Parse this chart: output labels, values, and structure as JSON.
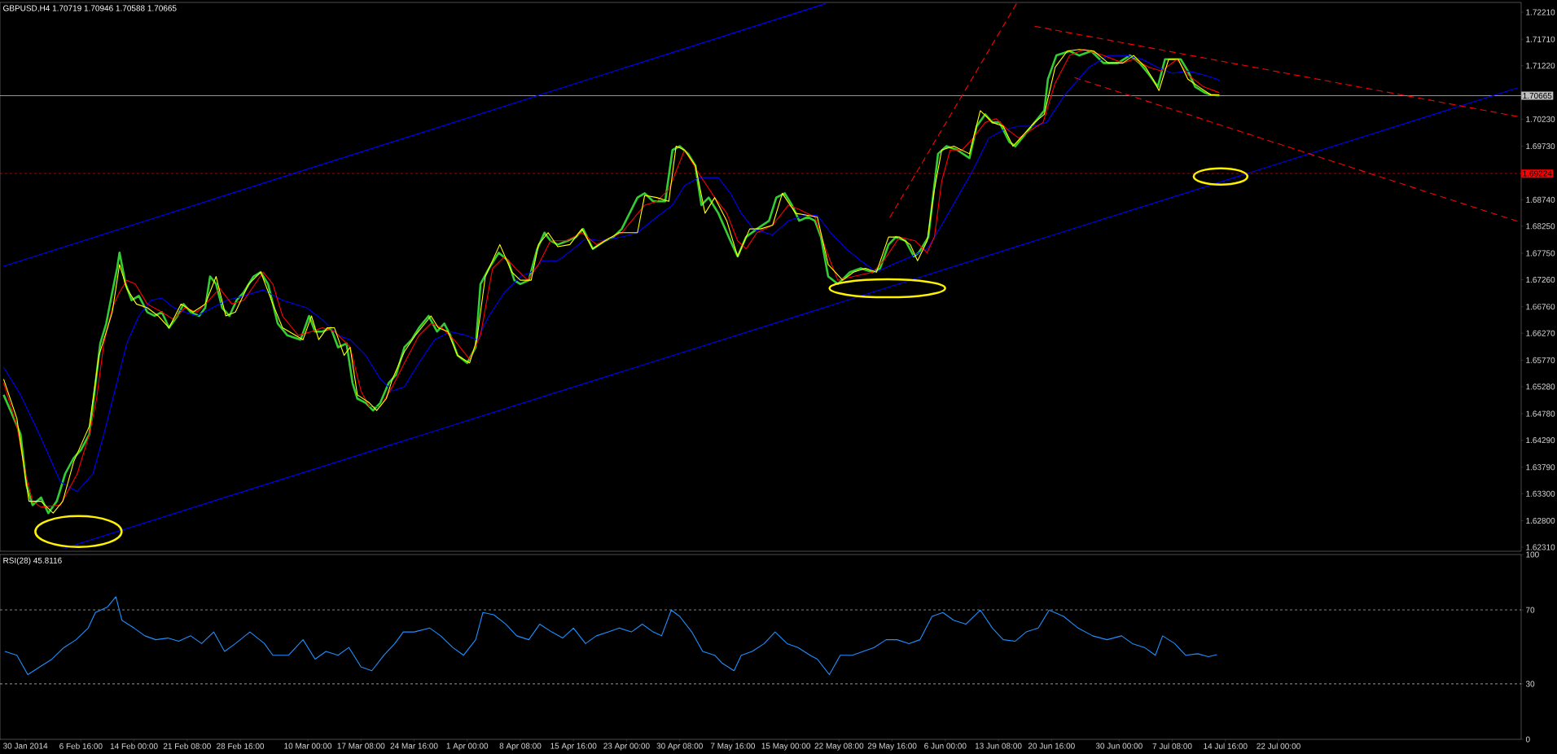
{
  "chart_data": [
    {
      "type": "line",
      "title": "GBPUSD,H4  1.70719 1.70946 1.70588 1.70665",
      "tick_labels": "y",
      "xlim": [
        "2014-01-26T12:00",
        "2014-08-24T12:00"
      ],
      "ylim": [
        1.62235,
        1.72391
      ],
      "yticks": [
        {
          "value": 1.6231,
          "label": "1.62310"
        },
        {
          "value": 1.628,
          "label": "1.62800"
        },
        {
          "value": 1.633,
          "label": "1.63300"
        },
        {
          "value": 1.6379,
          "label": "1.63790"
        },
        {
          "value": 1.6429,
          "label": "1.64290"
        },
        {
          "value": 1.6478,
          "label": "1.64780"
        },
        {
          "value": 1.6528,
          "label": "1.65280"
        },
        {
          "value": 1.6577,
          "label": "1.65770"
        },
        {
          "value": 1.6627,
          "label": "1.66270"
        },
        {
          "value": 1.6676,
          "label": "1.66760"
        },
        {
          "value": 1.6726,
          "label": "1.67260"
        },
        {
          "value": 1.6775,
          "label": "1.67750"
        },
        {
          "value": 1.6825,
          "label": "1.68250"
        },
        {
          "value": 1.6874,
          "label": "1.68740"
        },
        {
          "value": 1.6973,
          "label": "1.69730"
        },
        {
          "value": 1.7023,
          "label": "1.70230"
        },
        {
          "value": 1.7122,
          "label": "1.71220"
        },
        {
          "value": 1.7171,
          "label": "1.71710"
        },
        {
          "value": 1.7221,
          "label": "1.72210"
        }
      ],
      "ref_lines": [
        {
          "axis": "y",
          "value": 1.70665,
          "label": "1.70665",
          "color": "#c0c0c0",
          "line_style": "solid"
        },
        {
          "axis": "y",
          "value": 1.69224,
          "label": "1.69224",
          "color": "#ff0000",
          "line_style": "dotted"
        }
      ],
      "series": [
        {
          "color": "#0000ff",
          "line_style": "solid",
          "x": [
            "2014-01-27T00:00",
            "2014-05-20T12:00"
          ],
          "values": [
            1.6751,
            1.7237
          ]
        },
        {
          "color": "#0000ff",
          "line_style": "solid",
          "x": [
            "2014-02-04T04:00",
            "2014-08-24T00:00"
          ],
          "values": [
            1.6228,
            1.7081
          ]
        },
        {
          "color": "#ff0000",
          "line_style": "dashed",
          "x": [
            "2014-05-29T08:00",
            "2014-06-15T20:00"
          ],
          "values": [
            1.6841,
            1.7237
          ]
        },
        {
          "color": "#ff0000",
          "line_style": "dashed",
          "x": [
            "2014-06-18T08:00",
            "2014-08-24T00:00"
          ],
          "values": [
            1.7195,
            1.7028
          ]
        },
        {
          "color": "#ff0000",
          "line_style": "dashed",
          "x": [
            "2014-06-23T20:00",
            "2014-08-24T00:00"
          ],
          "values": [
            1.71,
            1.6834
          ]
        },
        {
          "color": "#32cd32",
          "line_style": "solid",
          "x": [
            "2014-01-27T00:00",
            "2014-01-28T04:00",
            "2014-01-29T08:00",
            "2014-01-30T04:00",
            "2014-01-31T00:00",
            "2014-02-01T04:00",
            "2014-02-02T04:00",
            "2014-02-03T08:00",
            "2014-02-04T12:00",
            "2014-02-05T16:00",
            "2014-02-06T16:00",
            "2014-02-07T20:00",
            "2014-02-08T12:00",
            "2014-02-09T08:00",
            "2014-02-10T04:00",
            "2014-02-11T00:00",
            "2014-02-11T16:00",
            "2014-02-12T00:00",
            "2014-02-12T20:00",
            "2014-02-13T16:00",
            "2014-02-14T16:00",
            "2014-02-15T20:00",
            "2014-02-16T20:00",
            "2014-02-17T20:00",
            "2014-02-18T20:00",
            "2014-02-20T00:00",
            "2014-02-20T20:00",
            "2014-02-21T20:00",
            "2014-02-23T00:00",
            "2014-02-23T20:00",
            "2014-02-24T12:00",
            "2014-02-25T08:00",
            "2014-02-26T04:00",
            "2014-02-27T04:00",
            "2014-02-28T04:00",
            "2014-03-01T04:00",
            "2014-03-02T12:00",
            "2014-03-03T12:00",
            "2014-03-04T12:00",
            "2014-03-05T20:00",
            "2014-03-07T04:00",
            "2014-03-09T00:00",
            "2014-03-10T04:00",
            "2014-03-11T00:00",
            "2014-03-12T00:00",
            "2014-03-13T04:00",
            "2014-03-14T04:00",
            "2014-03-15T08:00",
            "2014-03-16T04:00",
            "2014-03-16T20:00",
            "2014-03-18T00:00",
            "2014-03-19T00:00",
            "2014-03-20T00:00",
            "2014-03-21T04:00",
            "2014-03-22T04:00",
            "2014-03-23T08:00",
            "2014-03-24T08:00",
            "2014-03-25T08:00",
            "2014-03-26T16:00",
            "2014-03-27T20:00",
            "2014-03-28T20:00",
            "2014-03-29T16:00",
            "2014-03-30T16:00",
            "2014-04-01T00:00",
            "2014-04-02T04:00",
            "2014-04-02T20:00",
            "2014-04-04T00:00",
            "2014-04-05T08:00",
            "2014-04-06T16:00",
            "2014-04-07T12:00",
            "2014-04-08T08:00",
            "2014-04-09T12:00",
            "2014-04-10T16:00",
            "2014-04-11T16:00",
            "2014-04-12T12:00",
            "2014-04-13T12:00",
            "2014-04-14T20:00",
            "2014-04-16T00:00",
            "2014-04-17T00:00",
            "2014-04-18T08:00",
            "2014-04-20T00:00",
            "2014-04-21T04:00",
            "2014-04-22T08:00",
            "2014-04-24T12:00",
            "2014-04-25T12:00",
            "2014-04-26T16:00",
            "2014-04-28T08:00",
            "2014-04-29T08:00",
            "2014-04-30T08:00",
            "2014-05-01T12:00",
            "2014-05-02T12:00",
            "2014-05-03T08:00",
            "2014-05-04T08:00",
            "2014-05-05T16:00",
            "2014-05-07T08:00",
            "2014-05-08T08:00",
            "2014-05-09T12:00",
            "2014-05-11T00:00",
            "2014-05-12T16:00",
            "2014-05-13T16:00",
            "2014-05-14T20:00",
            "2014-05-15T20:00",
            "2014-05-16T20:00",
            "2014-05-18T00:00",
            "2014-05-19T00:00",
            "2014-05-19T20:00",
            "2014-05-20T20:00",
            "2014-05-22T04:00",
            "2014-05-23T20:00",
            "2014-05-25T08:00",
            "2014-05-27T00:00",
            "2014-05-28T00:00",
            "2014-05-29T04:00",
            "2014-05-30T04:00",
            "2014-05-31T12:00",
            "2014-06-01T16:00",
            "2014-06-02T08:00",
            "2014-06-03T16:00",
            "2014-06-04T04:00",
            "2014-06-05T00:00",
            "2014-06-06T04:00",
            "2014-06-07T16:00",
            "2014-06-09T08:00",
            "2014-06-10T08:00",
            "2014-06-11T12:00",
            "2014-06-12T12:00",
            "2014-06-13T12:00",
            "2014-06-14T20:00",
            "2014-06-15T16:00",
            "2014-06-17T00:00",
            "2014-06-18T08:00",
            "2014-06-19T16:00",
            "2014-06-20T04:00",
            "2014-06-21T08:00",
            "2014-06-23T04:00",
            "2014-06-24T12:00",
            "2014-06-26T04:00",
            "2014-06-27T20:00",
            "2014-06-29T20:00",
            "2014-07-01T12:00",
            "2014-07-02T20:00",
            "2014-07-04T04:00",
            "2014-07-05T08:00",
            "2014-07-06T08:00",
            "2014-07-07T08:00",
            "2014-07-08T12:00",
            "2014-07-09T12:00",
            "2014-07-10T12:00",
            "2014-07-11T20:00",
            "2014-07-12T16:00",
            "2014-07-13T20:00"
          ],
          "values": [
            1.6513,
            1.6477,
            1.644,
            1.6345,
            1.6309,
            1.6323,
            1.6294,
            1.6316,
            1.6367,
            1.6396,
            1.6411,
            1.644,
            1.6513,
            1.6608,
            1.6645,
            1.6703,
            1.6747,
            1.6776,
            1.6718,
            1.6688,
            1.6696,
            1.6666,
            1.6659,
            1.6666,
            1.6637,
            1.6659,
            1.6681,
            1.6666,
            1.6659,
            1.6674,
            1.6732,
            1.6718,
            1.6674,
            1.6659,
            1.6688,
            1.6703,
            1.6732,
            1.674,
            1.6718,
            1.6645,
            1.6623,
            1.6615,
            1.6659,
            1.663,
            1.663,
            1.6637,
            1.6601,
            1.6608,
            1.6535,
            1.6506,
            1.6498,
            1.6484,
            1.6498,
            1.6535,
            1.655,
            1.6601,
            1.6615,
            1.6637,
            1.6659,
            1.663,
            1.6645,
            1.6623,
            1.6586,
            1.6572,
            1.6601,
            1.6718,
            1.6747,
            1.6776,
            1.6761,
            1.6725,
            1.6718,
            1.6725,
            1.6783,
            1.6813,
            1.6798,
            1.6791,
            1.6798,
            1.6805,
            1.682,
            1.6783,
            1.6798,
            1.6805,
            1.682,
            1.6878,
            1.6886,
            1.6871,
            1.6871,
            1.6966,
            1.6973,
            1.6959,
            1.6937,
            1.6864,
            1.6878,
            1.6849,
            1.6798,
            1.6769,
            1.6805,
            1.682,
            1.6835,
            1.6878,
            1.6886,
            1.6864,
            1.6835,
            1.6842,
            1.6835,
            1.6805,
            1.6732,
            1.6718,
            1.674,
            1.6747,
            1.674,
            1.6747,
            1.6791,
            1.6805,
            1.6798,
            1.6769,
            1.6776,
            1.6805,
            1.6864,
            1.6959,
            1.6973,
            1.6966,
            1.6951,
            1.701,
            1.7032,
            1.7017,
            1.7017,
            1.6981,
            1.6973,
            1.6995,
            1.7017,
            1.7039,
            1.7097,
            1.7141,
            1.7149,
            1.7141,
            1.7149,
            1.7127,
            1.7127,
            1.7141,
            1.7127,
            1.7105,
            1.7083,
            1.7134,
            1.7134,
            1.7134,
            1.7112,
            1.7083,
            1.7072,
            1.7068,
            1.7067
          ]
        },
        {
          "color": "#0000ff",
          "line_style": "solid",
          "x": [
            "2014-01-27T00:00",
            "2014-01-29T08:00",
            "2014-02-01T04:00",
            "2014-02-03T20:00",
            "2014-02-06T04:00",
            "2014-02-08T08:00",
            "2014-02-09T20:00",
            "2014-02-11T12:00",
            "2014-02-13T00:00",
            "2014-02-14T16:00",
            "2014-02-16T08:00",
            "2014-02-17T20:00",
            "2014-02-19T12:00",
            "2014-02-21T00:00",
            "2014-02-22T16:00",
            "2014-02-24T20:00",
            "2014-02-26T20:00",
            "2014-03-01T04:00",
            "2014-03-03T20:00",
            "2014-03-06T12:00",
            "2014-03-09T20:00",
            "2014-03-12T00:00",
            "2014-03-14T04:00",
            "2014-03-15T20:00",
            "2014-03-18T00:00",
            "2014-03-20T00:00",
            "2014-03-21T16:00",
            "2014-03-23T08:00",
            "2014-03-25T08:00",
            "2014-03-27T12:00",
            "2014-03-29T16:00",
            "2014-03-31T20:00",
            "2014-04-02T08:00",
            "2014-04-04T00:00",
            "2014-04-06T04:00",
            "2014-04-08T08:00",
            "2014-04-09T20:00",
            "2014-04-11T08:00",
            "2014-04-13T12:00",
            "2014-04-15T16:00",
            "2014-04-17T08:00",
            "2014-04-19T08:00",
            "2014-04-22T08:00",
            "2014-04-24T12:00",
            "2014-04-27T04:00",
            "2014-04-29T08:00",
            "2014-05-01T00:00",
            "2014-05-03T00:00",
            "2014-05-05T16:00",
            "2014-05-07T08:00",
            "2014-05-08T20:00",
            "2014-05-10T12:00",
            "2014-05-13T04:00",
            "2014-05-15T08:00",
            "2014-05-17T12:00",
            "2014-05-19T08:00",
            "2014-05-21T04:00",
            "2014-05-23T08:00",
            "2014-05-25T08:00",
            "2014-05-27T12:00",
            "2014-05-29T16:00",
            "2014-06-01T08:00",
            "2014-06-03T12:00",
            "2014-06-05T12:00",
            "2014-06-07T16:00",
            "2014-06-09T20:00",
            "2014-06-12T00:00",
            "2014-06-14T00:00",
            "2014-06-16T04:00",
            "2014-06-18T08:00",
            "2014-06-20T00:00",
            "2014-06-22T12:00",
            "2014-06-25T20:00",
            "2014-06-28T12:00",
            "2014-07-01T00:00",
            "2014-07-03T04:00",
            "2014-07-05T08:00",
            "2014-07-07T08:00",
            "2014-07-09T12:00",
            "2014-07-11T16:00",
            "2014-07-13T12:00",
            "2014-07-13T20:00"
          ],
          "values": [
            1.6564,
            1.6513,
            1.6433,
            1.6352,
            1.6334,
            1.6367,
            1.644,
            1.6528,
            1.6608,
            1.6659,
            1.6688,
            1.6692,
            1.6674,
            1.6666,
            1.6659,
            1.6674,
            1.6688,
            1.6696,
            1.6707,
            1.6688,
            1.6674,
            1.6652,
            1.6623,
            1.6615,
            1.6586,
            1.6542,
            1.652,
            1.6528,
            1.6572,
            1.6615,
            1.663,
            1.6623,
            1.6615,
            1.6659,
            1.6703,
            1.6732,
            1.674,
            1.6761,
            1.6761,
            1.6783,
            1.6802,
            1.6798,
            1.6805,
            1.6813,
            1.6842,
            1.6864,
            1.69,
            1.6915,
            1.6915,
            1.6886,
            1.6849,
            1.682,
            1.6809,
            1.6835,
            1.6845,
            1.6845,
            1.6813,
            1.6783,
            1.6761,
            1.674,
            1.6754,
            1.6769,
            1.6783,
            1.6827,
            1.6878,
            1.6929,
            1.6988,
            1.7003,
            1.701,
            1.701,
            1.7017,
            1.7068,
            1.7119,
            1.7141,
            1.7141,
            1.7134,
            1.7119,
            1.7108,
            1.7112,
            1.7105,
            1.7097,
            1.7094
          ]
        },
        {
          "color": "#ff0000",
          "line_style": "solid",
          "x": [
            "2014-01-27T00:00",
            "2014-01-28T20:00",
            "2014-01-30T00:00",
            "2014-01-31T00:00",
            "2014-02-01T04:00",
            "2014-02-03T20:00",
            "2014-02-06T04:00",
            "2014-02-07T20:00",
            "2014-02-08T20:00",
            "2014-02-09T20:00",
            "2014-02-11T00:00",
            "2014-02-12T00:00",
            "2014-02-13T00:00",
            "2014-02-14T04:00",
            "2014-02-15T20:00",
            "2014-02-17T20:00",
            "2014-02-19T12:00",
            "2014-02-21T00:00",
            "2014-02-22T16:00",
            "2014-02-24T08:00",
            "2014-02-25T20:00",
            "2014-02-27T12:00",
            "2014-03-01T04:00",
            "2014-03-03T20:00",
            "2014-03-05T04:00",
            "2014-03-06T12:00",
            "2014-03-08T16:00",
            "2014-03-10T12:00",
            "2014-03-12T00:00",
            "2014-03-13T16:00",
            "2014-03-15T20:00",
            "2014-03-17T08:00",
            "2014-03-18T12:00",
            "2014-03-20T00:00",
            "2014-03-21T16:00",
            "2014-03-23T08:00",
            "2014-03-25T08:00",
            "2014-03-27T00:00",
            "2014-03-28T12:00",
            "2014-03-30T04:00",
            "2014-04-01T08:00",
            "2014-04-02T20:00",
            "2014-04-04T12:00",
            "2014-04-06T04:00",
            "2014-04-07T16:00",
            "2014-04-09T08:00",
            "2014-04-10T20:00",
            "2014-04-12T12:00",
            "2014-04-14T16:00",
            "2014-04-16T20:00",
            "2014-04-18T20:00",
            "2014-04-21T00:00",
            "2014-04-22T08:00",
            "2014-04-25T12:00",
            "2014-04-27T04:00",
            "2014-04-28T20:00",
            "2014-05-01T00:00",
            "2014-05-03T00:00",
            "2014-05-05T04:00",
            "2014-05-06T20:00",
            "2014-05-08T08:00",
            "2014-05-09T12:00",
            "2014-05-11T00:00",
            "2014-05-13T04:00",
            "2014-05-15T08:00",
            "2014-05-16T20:00",
            "2014-05-19T00:00",
            "2014-05-20T16:00",
            "2014-05-22T04:00",
            "2014-05-24T08:00",
            "2014-05-27T00:00",
            "2014-05-28T12:00",
            "2014-05-30T16:00",
            "2014-06-01T20:00",
            "2014-06-03T12:00",
            "2014-06-04T12:00",
            "2014-06-05T12:00",
            "2014-06-06T16:00",
            "2014-06-08T08:00",
            "2014-06-09T20:00",
            "2014-06-11T12:00",
            "2014-06-13T00:00",
            "2014-06-14T16:00",
            "2014-06-16T04:00",
            "2014-06-17T20:00",
            "2014-06-19T12:00",
            "2014-06-21T04:00",
            "2014-06-23T04:00",
            "2014-06-25T04:00",
            "2014-06-27T20:00",
            "2014-06-30T12:00",
            "2014-07-02T00:00",
            "2014-07-04T04:00",
            "2014-07-05T20:00",
            "2014-07-08T00:00",
            "2014-07-09T12:00",
            "2014-07-11T16:00",
            "2014-07-13T20:00"
          ],
          "values": [
            1.6535,
            1.6455,
            1.6367,
            1.6316,
            1.6305,
            1.6309,
            1.6367,
            1.644,
            1.6506,
            1.6608,
            1.6674,
            1.6703,
            1.6725,
            1.6718,
            1.6681,
            1.6666,
            1.6652,
            1.6674,
            1.6666,
            1.6688,
            1.671,
            1.6681,
            1.6688,
            1.674,
            1.6718,
            1.6659,
            1.6623,
            1.663,
            1.6637,
            1.663,
            1.6601,
            1.652,
            1.6491,
            1.6491,
            1.6528,
            1.6572,
            1.6623,
            1.6645,
            1.6637,
            1.6615,
            1.6579,
            1.6623,
            1.6747,
            1.6769,
            1.6747,
            1.6725,
            1.6754,
            1.6798,
            1.6798,
            1.6813,
            1.6791,
            1.6805,
            1.6813,
            1.6864,
            1.6871,
            1.6893,
            1.6966,
            1.6922,
            1.6878,
            1.6849,
            1.6798,
            1.6783,
            1.6813,
            1.6827,
            1.6864,
            1.6856,
            1.6842,
            1.6776,
            1.6725,
            1.6732,
            1.674,
            1.6761,
            1.6805,
            1.6798,
            1.6776,
            1.6805,
            1.6908,
            1.6966,
            1.6966,
            1.6988,
            1.7017,
            1.7024,
            1.7003,
            1.6988,
            1.7003,
            1.7017,
            1.709,
            1.7141,
            1.7152,
            1.7141,
            1.7127,
            1.7134,
            1.7119,
            1.7112,
            1.7134,
            1.7105,
            1.7083,
            1.7072
          ]
        },
        {
          "color": "#ffff00",
          "line_style": "solid",
          "x": [
            "2014-01-27T00:00",
            "2014-01-28T20:00",
            "2014-01-30T12:00",
            "2014-02-01T04:00",
            "2014-02-02T20:00",
            "2014-02-04T04:00",
            "2014-02-05T16:00",
            "2014-02-07T20:00",
            "2014-02-09T04:00",
            "2014-02-11T00:00",
            "2014-02-12T00:00",
            "2014-02-13T00:00",
            "2014-02-14T08:00",
            "2014-02-15T20:00",
            "2014-02-17T08:00",
            "2014-02-18T20:00",
            "2014-02-20T12:00",
            "2014-02-22T04:00",
            "2014-02-23T20:00",
            "2014-02-25T08:00",
            "2014-02-26T16:00",
            "2014-02-28T00:00",
            "2014-03-01T20:00",
            "2014-03-03T12:00",
            "2014-03-05T04:00",
            "2014-03-06T12:00",
            "2014-03-09T08:00",
            "2014-03-10T12:00",
            "2014-03-11T12:00",
            "2014-03-12T16:00",
            "2014-03-13T16:00",
            "2014-03-15T00:00",
            "2014-03-15T20:00",
            "2014-03-16T20:00",
            "2014-03-18T12:00",
            "2014-03-19T12:00",
            "2014-03-20T20:00",
            "2014-03-21T16:00",
            "2014-03-23T08:00",
            "2014-03-24T20:00",
            "2014-03-27T00:00",
            "2014-03-28T00:00",
            "2014-03-29T08:00",
            "2014-03-30T16:00",
            "2014-04-01T08:00",
            "2014-04-02T08:00",
            "2014-04-03T12:00",
            "2014-04-05T12:00",
            "2014-04-07T04:00",
            "2014-04-08T08:00",
            "2014-04-09T20:00",
            "2014-04-10T20:00",
            "2014-04-12T04:00",
            "2014-04-13T12:00",
            "2014-04-15T04:00",
            "2014-04-16T20:00",
            "2014-04-18T08:00",
            "2014-04-20T00:00",
            "2014-04-22T00:00",
            "2014-04-24T12:00",
            "2014-04-25T12:00",
            "2014-04-27T04:00",
            "2014-04-28T20:00",
            "2014-04-29T20:00",
            "2014-05-01T00:00",
            "2014-05-02T12:00",
            "2014-05-03T20:00",
            "2014-05-05T04:00",
            "2014-05-06T20:00",
            "2014-05-08T08:00",
            "2014-05-10T00:00",
            "2014-05-11T12:00",
            "2014-05-13T04:00",
            "2014-05-14T12:00",
            "2014-05-16T08:00",
            "2014-05-18T00:00",
            "2014-05-19T08:00",
            "2014-05-20T20:00",
            "2014-05-22T20:00",
            "2014-05-24T08:00",
            "2014-05-26T00:00",
            "2014-05-27T12:00",
            "2014-05-29T04:00",
            "2014-05-30T16:00",
            "2014-06-01T04:00",
            "2014-06-02T04:00",
            "2014-06-03T12:00",
            "2014-06-04T12:00",
            "2014-06-05T12:00",
            "2014-06-07T04:00",
            "2014-06-09T08:00",
            "2014-06-10T20:00",
            "2014-06-12T12:00",
            "2014-06-14T00:00",
            "2014-06-15T08:00",
            "2014-06-16T20:00",
            "2014-06-18T08:00",
            "2014-06-19T16:00",
            "2014-06-21T04:00",
            "2014-06-22T20:00",
            "2014-06-24T12:00",
            "2014-06-26T12:00",
            "2014-06-28T12:00",
            "2014-06-30T12:00",
            "2014-07-02T00:00",
            "2014-07-03T16:00",
            "2014-07-04T16:00",
            "2014-07-05T12:00",
            "2014-07-06T20:00",
            "2014-07-08T04:00",
            "2014-07-09T12:00",
            "2014-07-11T00:00",
            "2014-07-12T16:00",
            "2014-07-13T20:00"
          ],
          "values": [
            1.6542,
            1.6469,
            1.6316,
            1.6316,
            1.6294,
            1.6316,
            1.6389,
            1.6455,
            1.6586,
            1.6666,
            1.6754,
            1.671,
            1.6681,
            1.6674,
            1.6659,
            1.6637,
            1.6681,
            1.6666,
            1.6681,
            1.6732,
            1.6659,
            1.6666,
            1.6718,
            1.674,
            1.6681,
            1.6637,
            1.6615,
            1.6659,
            1.6615,
            1.6637,
            1.6637,
            1.6586,
            1.6601,
            1.6513,
            1.6498,
            1.6484,
            1.6506,
            1.6542,
            1.6593,
            1.6623,
            1.6659,
            1.6637,
            1.663,
            1.6586,
            1.6572,
            1.6615,
            1.6732,
            1.6791,
            1.674,
            1.6725,
            1.6725,
            1.6791,
            1.6813,
            1.6787,
            1.6791,
            1.682,
            1.6783,
            1.6798,
            1.6813,
            1.6813,
            1.6882,
            1.6878,
            1.6871,
            1.6973,
            1.6966,
            1.6937,
            1.6849,
            1.6878,
            1.6835,
            1.6769,
            1.682,
            1.682,
            1.6827,
            1.6886,
            1.6849,
            1.6845,
            1.6842,
            1.6754,
            1.6725,
            1.674,
            1.6747,
            1.674,
            1.6805,
            1.6805,
            1.6791,
            1.6761,
            1.6798,
            1.6893,
            1.6966,
            1.6973,
            1.6959,
            1.7039,
            1.7017,
            1.701,
            1.6973,
            1.6995,
            1.7017,
            1.7032,
            1.7119,
            1.7149,
            1.7152,
            1.7149,
            1.7127,
            1.7127,
            1.7141,
            1.7119,
            1.7097,
            1.7076,
            1.7134,
            1.7134,
            1.7097,
            1.7083,
            1.7068,
            1.7068
          ]
        }
      ]
    },
    {
      "type": "line",
      "title": "RSI(28) 45.8116",
      "xlim": [
        "2014-01-26T12:00",
        "2014-08-24T12:00"
      ],
      "ylim": [
        0,
        100
      ],
      "xticks": [
        {
          "value": "2014-01-30T00:00",
          "label": "30 Jan 2014"
        },
        {
          "value": "2014-02-06T16:00",
          "label": "6 Feb 16:00"
        },
        {
          "value": "2014-02-14T00:00",
          "label": "14 Feb 00:00"
        },
        {
          "value": "2014-02-21T08:00",
          "label": "21 Feb 08:00"
        },
        {
          "value": "2014-02-28T16:00",
          "label": "28 Feb 16:00"
        },
        {
          "value": "2014-03-10T00:00",
          "label": "10 Mar 00:00"
        },
        {
          "value": "2014-03-17T08:00",
          "label": "17 Mar 08:00"
        },
        {
          "value": "2014-03-24T16:00",
          "label": "24 Mar 16:00"
        },
        {
          "value": "2014-04-01T00:00",
          "label": "1 Apr 00:00"
        },
        {
          "value": "2014-04-08T08:00",
          "label": "8 Apr 08:00"
        },
        {
          "value": "2014-04-15T16:00",
          "label": "15 Apr 16:00"
        },
        {
          "value": "2014-04-23T00:00",
          "label": "23 Apr 00:00"
        },
        {
          "value": "2014-04-30T08:00",
          "label": "30 Apr 08:00"
        },
        {
          "value": "2014-05-07T16:00",
          "label": "7 May 16:00"
        },
        {
          "value": "2014-05-15T00:00",
          "label": "15 May 00:00"
        },
        {
          "value": "2014-05-22T08:00",
          "label": "22 May 08:00"
        },
        {
          "value": "2014-05-29T16:00",
          "label": "29 May 16:00"
        },
        {
          "value": "2014-06-06T00:00",
          "label": "6 Jun 00:00"
        },
        {
          "value": "2014-06-13T08:00",
          "label": "13 Jun 08:00"
        },
        {
          "value": "2014-06-20T16:00",
          "label": "20 Jun 16:00"
        },
        {
          "value": "2014-06-30T00:00",
          "label": "30 Jun 00:00"
        },
        {
          "value": "2014-07-07T08:00",
          "label": "7 Jul 08:00"
        },
        {
          "value": "2014-07-14T16:00",
          "label": "14 Jul 16:00"
        },
        {
          "value": "2014-07-22T00:00",
          "label": "22 Jul 00:00"
        }
      ],
      "yticks": [
        0,
        30,
        70,
        100
      ],
      "ref_lines": [
        {
          "axis": "y",
          "value": 30,
          "color": "#c0c0c0",
          "line_style": "dotted"
        },
        {
          "axis": "y",
          "value": 70,
          "color": "#c0c0c0",
          "line_style": "dotted"
        }
      ],
      "series": [
        {
          "color": "#1e90ff",
          "line_style": "solid",
          "x": [
            "2014-01-27T04:00",
            "2014-01-28T20:00",
            "2014-01-30T08:00",
            "2014-02-01T00:00",
            "2014-02-02T16:00",
            "2014-02-04T08:00",
            "2014-02-06T00:00",
            "2014-02-07T16:00",
            "2014-02-08T16:00",
            "2014-02-10T08:00",
            "2014-02-11T12:00",
            "2014-02-12T08:00",
            "2014-02-14T00:00",
            "2014-02-15T12:00",
            "2014-02-17T00:00",
            "2014-02-18T16:00",
            "2014-02-20T04:00",
            "2014-02-21T20:00",
            "2014-02-23T08:00",
            "2014-02-25T00:00",
            "2014-02-26T12:00",
            "2014-02-28T00:00",
            "2014-03-02T00:00",
            "2014-03-04T00:00",
            "2014-03-05T04:00",
            "2014-03-07T08:00",
            "2014-03-09T08:00",
            "2014-03-11T00:00",
            "2014-03-12T12:00",
            "2014-03-14T04:00",
            "2014-03-15T16:00",
            "2014-03-17T08:00",
            "2014-03-18T20:00",
            "2014-03-20T12:00",
            "2014-03-22T00:00",
            "2014-03-23T04:00",
            "2014-03-24T16:00",
            "2014-03-26T20:00",
            "2014-03-28T08:00",
            "2014-03-30T00:00",
            "2014-03-31T12:00",
            "2014-04-02T04:00",
            "2014-04-03T04:00",
            "2014-04-04T16:00",
            "2014-04-06T08:00",
            "2014-04-07T20:00",
            "2014-04-09T12:00",
            "2014-04-11T00:00",
            "2014-04-12T16:00",
            "2014-04-14T04:00",
            "2014-04-15T16:00",
            "2014-04-17T08:00",
            "2014-04-18T20:00",
            "2014-04-20T12:00",
            "2014-04-22T00:00",
            "2014-04-23T16:00",
            "2014-04-25T04:00",
            "2014-04-26T16:00",
            "2014-04-27T20:00",
            "2014-04-29T04:00",
            "2014-04-30T08:00",
            "2014-05-02T00:00",
            "2014-05-03T12:00",
            "2014-05-05T04:00",
            "2014-05-06T04:00",
            "2014-05-07T20:00",
            "2014-05-08T20:00",
            "2014-05-10T08:00",
            "2014-05-12T00:00",
            "2014-05-13T12:00",
            "2014-05-15T04:00",
            "2014-05-16T16:00",
            "2014-05-18T08:00",
            "2014-05-19T08:00",
            "2014-05-21T00:00",
            "2014-05-22T12:00",
            "2014-05-24T04:00",
            "2014-05-25T16:00",
            "2014-05-27T04:00",
            "2014-05-28T20:00",
            "2014-05-30T08:00",
            "2014-06-01T00:00",
            "2014-06-02T12:00",
            "2014-06-04T04:00",
            "2014-06-05T16:00",
            "2014-06-07T04:00",
            "2014-06-08T20:00",
            "2014-06-10T20:00",
            "2014-06-12T12:00",
            "2014-06-14T00:00",
            "2014-06-15T16:00",
            "2014-06-17T04:00",
            "2014-06-18T20:00",
            "2014-06-20T08:00",
            "2014-06-22T08:00",
            "2014-06-24T08:00",
            "2014-06-26T08:00",
            "2014-06-28T08:00",
            "2014-06-30T08:00",
            "2014-07-01T20:00",
            "2014-07-03T12:00",
            "2014-07-05T00:00",
            "2014-07-06T00:00",
            "2014-07-07T16:00",
            "2014-07-09T04:00",
            "2014-07-10T20:00",
            "2014-07-12T08:00",
            "2014-07-13T12:00"
          ],
          "values": [
            47.6,
            45.5,
            35.0,
            39.2,
            43.4,
            49.7,
            53.9,
            60.2,
            68.6,
            71.6,
            77.1,
            64.4,
            60.2,
            56.0,
            53.9,
            54.8,
            53.1,
            56.0,
            51.8,
            58.1,
            47.6,
            51.8,
            58.1,
            51.8,
            45.5,
            45.5,
            53.9,
            43.4,
            47.6,
            45.5,
            49.7,
            39.2,
            37.1,
            45.5,
            51.8,
            58.1,
            58.1,
            60.2,
            56.0,
            49.7,
            45.5,
            53.9,
            68.6,
            67.4,
            62.3,
            56.0,
            53.9,
            62.3,
            58.1,
            54.8,
            60.2,
            51.8,
            56.0,
            58.1,
            60.2,
            58.1,
            62.3,
            58.1,
            56.0,
            69.9,
            66.5,
            58.1,
            47.6,
            45.5,
            41.3,
            37.1,
            45.5,
            47.6,
            51.8,
            58.1,
            51.8,
            49.7,
            45.5,
            43.4,
            35.0,
            45.5,
            45.5,
            47.6,
            49.7,
            53.9,
            53.9,
            51.8,
            53.9,
            66.5,
            68.6,
            64.4,
            62.3,
            69.9,
            60.2,
            53.9,
            53.1,
            58.1,
            60.2,
            69.9,
            66.5,
            60.2,
            56.0,
            53.9,
            56.0,
            51.8,
            49.7,
            45.5,
            56.0,
            51.8,
            45.5,
            46.3,
            44.7,
            45.8
          ]
        }
      ]
    }
  ]
}
